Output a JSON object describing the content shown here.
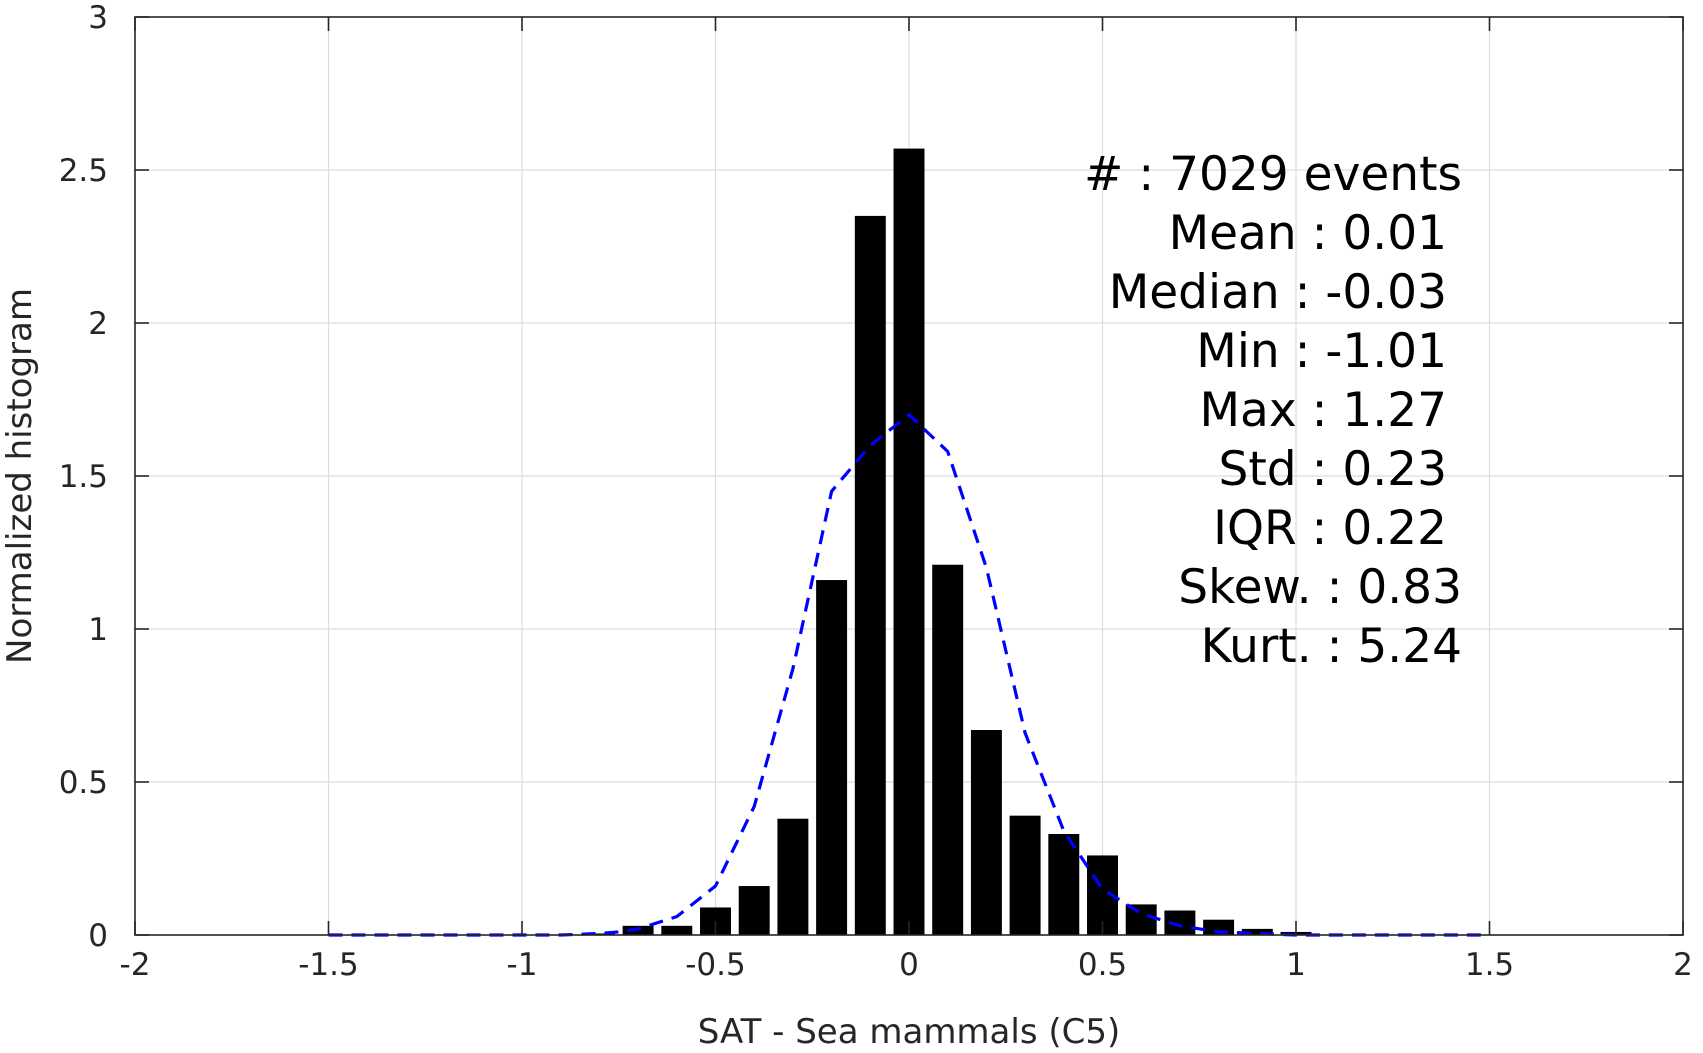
{
  "chart_data": {
    "type": "bar",
    "title": "",
    "xlabel": "SAT - Sea mammals  (C5)",
    "ylabel": "Normalized histogram",
    "xlim": [
      -2,
      2
    ],
    "ylim": [
      0,
      3
    ],
    "grid": true,
    "x_ticks": [
      -2,
      -1.5,
      -1,
      -0.5,
      0,
      0.5,
      1,
      1.5,
      2
    ],
    "x_tick_labels": [
      "-2",
      "-1.5",
      "-1",
      "-0.5",
      "0",
      "0.5",
      "1",
      "1.5",
      "2"
    ],
    "y_ticks": [
      0,
      0.5,
      1,
      1.5,
      2,
      2.5,
      3
    ],
    "y_tick_labels": [
      "0",
      "0.5",
      "1",
      "1.5",
      "2",
      "2.5",
      "3"
    ],
    "bar_width": 0.08,
    "series": [
      {
        "type": "bar",
        "color": "#000000",
        "x": [
          -0.8,
          -0.7,
          -0.6,
          -0.5,
          -0.4,
          -0.3,
          -0.2,
          -0.1,
          0.0,
          0.1,
          0.2,
          0.3,
          0.4,
          0.5,
          0.6,
          0.7,
          0.8,
          0.9,
          1.0
        ],
        "values": [
          0.005,
          0.03,
          0.03,
          0.09,
          0.16,
          0.38,
          1.16,
          2.35,
          2.57,
          1.21,
          0.67,
          0.39,
          0.33,
          0.26,
          0.1,
          0.08,
          0.05,
          0.02,
          0.01
        ]
      },
      {
        "type": "line",
        "style": "dashed",
        "color": "#0000ff",
        "x": [
          -1.5,
          -1.2,
          -1.0,
          -0.9,
          -0.8,
          -0.75,
          -0.7,
          -0.6,
          -0.5,
          -0.4,
          -0.3,
          -0.2,
          -0.1,
          0.0,
          0.1,
          0.2,
          0.3,
          0.4,
          0.5,
          0.6,
          0.7,
          0.8,
          0.9,
          1.0,
          1.2,
          1.5
        ],
        "values": [
          0.0,
          0.0,
          0.0,
          0.0,
          0.005,
          0.01,
          0.02,
          0.06,
          0.16,
          0.42,
          0.87,
          1.45,
          1.6,
          1.7,
          1.58,
          1.2,
          0.66,
          0.34,
          0.15,
          0.07,
          0.03,
          0.01,
          0.005,
          0.0,
          0.0,
          0.0
        ]
      }
    ],
    "annotation_lines": [
      "#  : 7029 events",
      "Mean : 0.01",
      "Median : -0.03",
      "Min : -1.01",
      "Max : 1.27",
      "Std : 0.23",
      "IQR : 0.22",
      "Skew. : 0.83",
      "Kurt. : 5.24"
    ],
    "annotation_align": [
      "end",
      "end",
      "end",
      "end",
      "end",
      "end",
      "end",
      "end",
      "end"
    ]
  }
}
